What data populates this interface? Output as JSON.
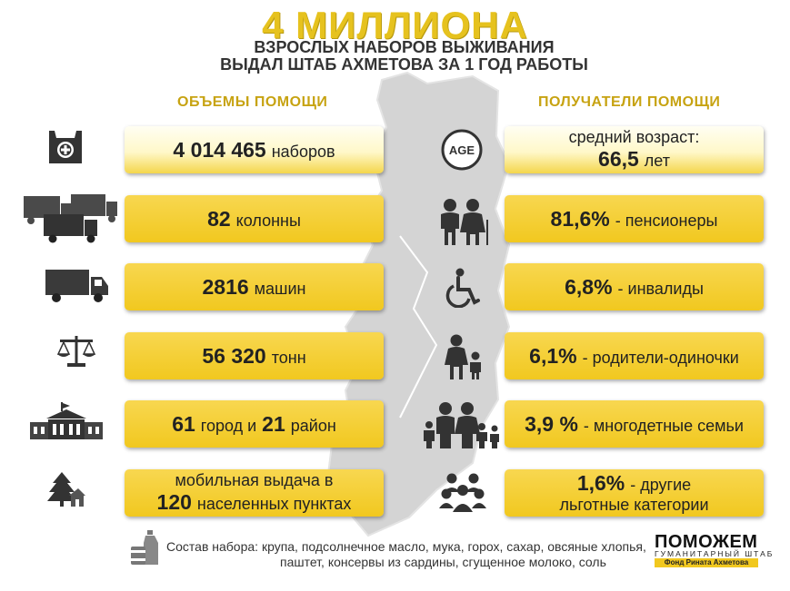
{
  "header": {
    "title": "4 МИЛЛИОНА",
    "subtitle_line1": "ВЗРОСЛЫХ НАБОРОВ ВЫЖИВАНИЯ",
    "subtitle_line2": "ВЫДАЛ ШТАБ АХМЕТОВА ЗА 1 ГОД РАБОТЫ"
  },
  "sections": {
    "left": "ОБЪЕМЫ ПОМОЩИ",
    "right": "ПОЛУЧАТЕЛИ ПОМОЩИ"
  },
  "volumes": [
    {
      "icon": "aid-bag-icon",
      "value": "4 014 465",
      "text": "наборов"
    },
    {
      "icon": "truck-convoy-icon",
      "value": "82",
      "text": "колонны"
    },
    {
      "icon": "truck-icon",
      "value": "2816",
      "text": "машин"
    },
    {
      "icon": "scales-icon",
      "value": "56 320",
      "text": "тонн"
    },
    {
      "icon": "town-hall-icon",
      "value1": "61",
      "text1": "город и",
      "value2": "21",
      "text2": "район"
    },
    {
      "icon": "trees-house-icon",
      "line1": "мобильная выдача в",
      "value": "120",
      "text": "населенных пунктах"
    }
  ],
  "recipients": [
    {
      "icon": "age-icon",
      "icon_text": "AGE",
      "line1": "средний возраст:",
      "value": "66,5",
      "text": "лет"
    },
    {
      "icon": "elderly-couple-icon",
      "value": "81,6%",
      "text": "- пенсионеры"
    },
    {
      "icon": "wheelchair-icon",
      "value": "6,8%",
      "text": "- инвалиды"
    },
    {
      "icon": "single-parent-icon",
      "value": "6,1%",
      "text": "-  родители-одиночки"
    },
    {
      "icon": "large-family-icon",
      "value": "3,9 %",
      "text": "- многодетные семьи"
    },
    {
      "icon": "group-people-icon",
      "value": "1,6%",
      "text": "- другие",
      "line2": "льготные категории"
    }
  ],
  "footer": {
    "icon": "grocery-icon",
    "composition_line1": "Состав набора: крупа, подсолнечное масло, мука, горох, сахар, овсяные хлопья,",
    "composition_line2": "паштет, консервы из сардины, сгущенное молоко, соль",
    "logo_main": "ПОМОЖЕМ",
    "logo_sub": "ГУМАНИТАРНЫЙ ШТАБ",
    "logo_bar": "Фонд Рината Ахметова"
  },
  "colors": {
    "gold": "#f1c81f",
    "title_gold": "#e6c21e",
    "map_gray": "#d4d4d4"
  }
}
